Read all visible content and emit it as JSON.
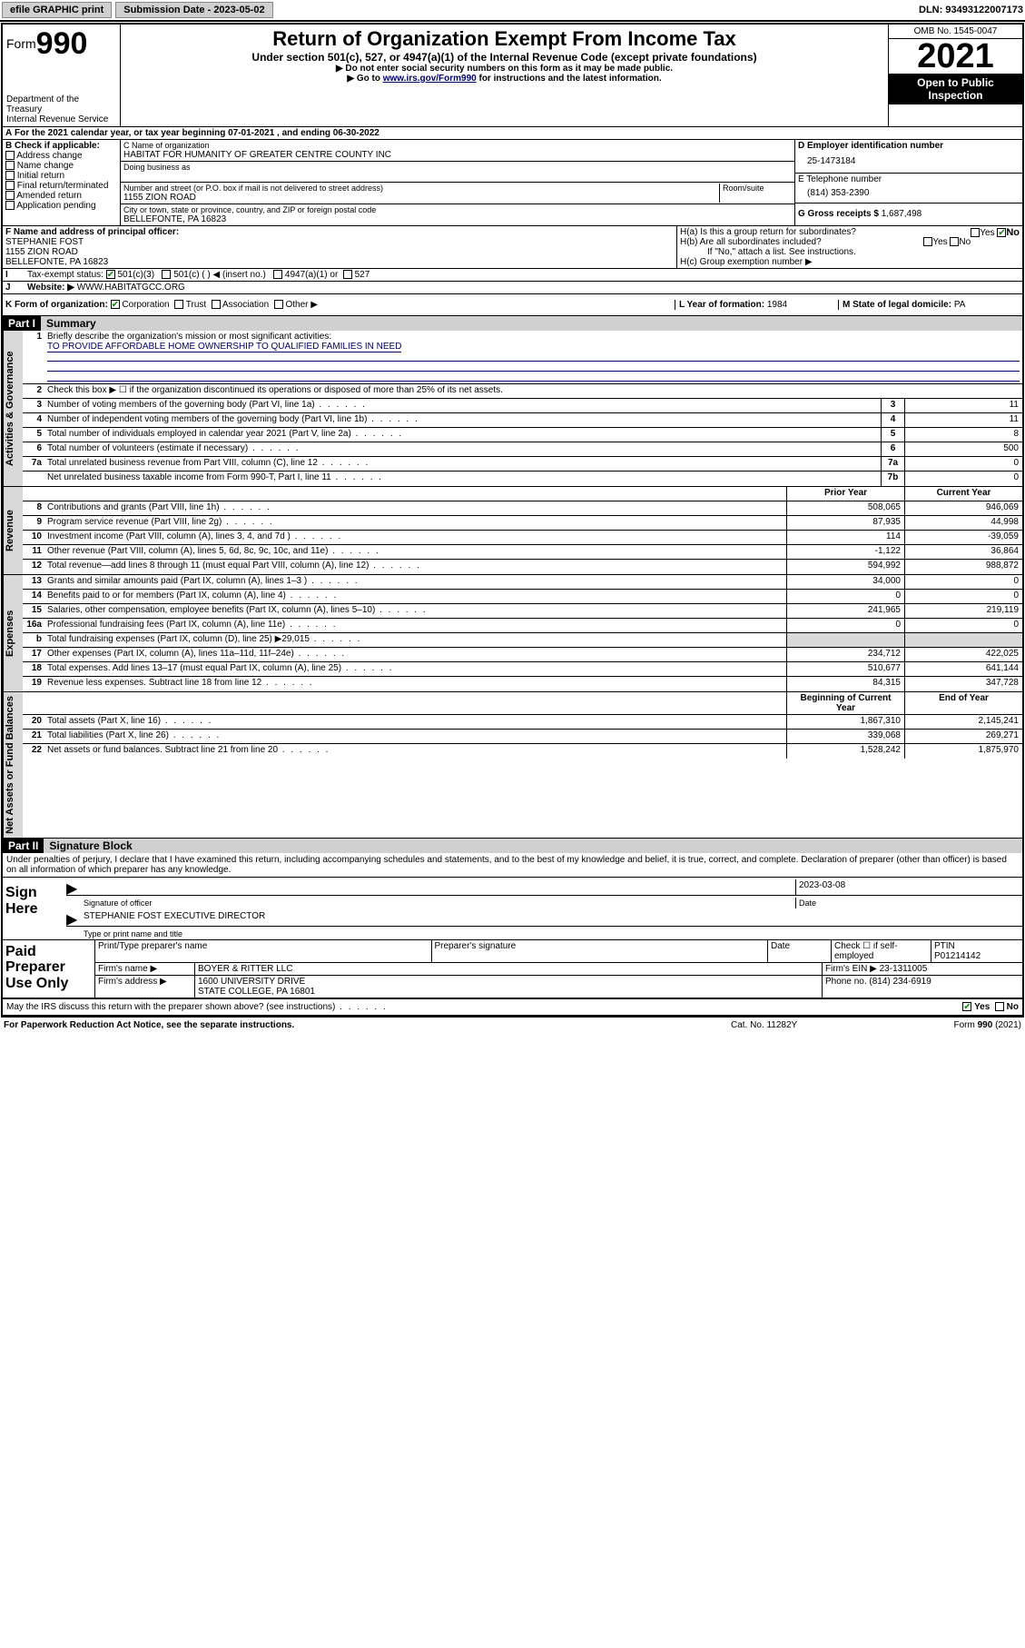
{
  "topbar": {
    "efile": "efile GRAPHIC print",
    "sub_label": "Submission Date - 2023-05-02",
    "dln_label": "DLN: 93493122007173"
  },
  "header": {
    "form_prefix": "Form",
    "form_num": "990",
    "dept": "Department of the Treasury",
    "irs": "Internal Revenue Service",
    "title": "Return of Organization Exempt From Income Tax",
    "subtitle": "Under section 501(c), 527, or 4947(a)(1) of the Internal Revenue Code (except private foundations)",
    "instr1": "▶ Do not enter social security numbers on this form as it may be made public.",
    "instr2_pre": "▶ Go to ",
    "instr2_link": "www.irs.gov/Form990",
    "instr2_post": " for instructions and the latest information.",
    "omb": "OMB No. 1545-0047",
    "year": "2021",
    "inspect": "Open to Public Inspection"
  },
  "periodA": "For the 2021 calendar year, or tax year beginning 07-01-2021  , and ending 06-30-2022",
  "boxB": {
    "label": "B Check if applicable:",
    "items": [
      "Address change",
      "Name change",
      "Initial return",
      "Final return/terminated",
      "Amended return",
      "Application pending"
    ]
  },
  "boxC": {
    "name_label": "C Name of organization",
    "name": "HABITAT FOR HUMANITY OF GREATER CENTRE COUNTY INC",
    "dba_label": "Doing business as",
    "addr_label": "Number and street (or P.O. box if mail is not delivered to street address)",
    "room_label": "Room/suite",
    "addr": "1155 ZION ROAD",
    "city_label": "City or town, state or province, country, and ZIP or foreign postal code",
    "city": "BELLEFONTE, PA  16823"
  },
  "boxD": {
    "label": "D Employer identification number",
    "val": "25-1473184"
  },
  "boxE": {
    "label": "E Telephone number",
    "val": "(814) 353-2390"
  },
  "boxG": {
    "label": "G Gross receipts $",
    "val": "1,687,498"
  },
  "boxF": {
    "label": "F  Name and address of principal officer:",
    "name": "STEPHANIE FOST",
    "addr1": "1155 ZION ROAD",
    "addr2": "BELLEFONTE, PA  16823"
  },
  "boxH": {
    "ha": "H(a)  Is this a group return for subordinates?",
    "hb": "H(b)  Are all subordinates included?",
    "hnote": "If \"No,\" attach a list. See instructions.",
    "hc": "H(c)  Group exemption number ▶",
    "yes": "Yes",
    "no": "No"
  },
  "boxI": {
    "label": "Tax-exempt status:",
    "opt1": "501(c)(3)",
    "opt2": "501(c) (  ) ◀ (insert no.)",
    "opt3": "4947(a)(1) or",
    "opt4": "527"
  },
  "boxJ": {
    "label": "Website: ▶",
    "val": "WWW.HABITATGCC.ORG"
  },
  "boxK": {
    "label": "K Form of organization:",
    "opts": [
      "Corporation",
      "Trust",
      "Association",
      "Other ▶"
    ]
  },
  "boxL": {
    "label": "L Year of formation:",
    "val": "1984"
  },
  "boxM": {
    "label": "M State of legal domicile:",
    "val": "PA"
  },
  "partI": {
    "num": "Part I",
    "title": "Summary"
  },
  "tabs": {
    "gov": "Activities & Governance",
    "rev": "Revenue",
    "exp": "Expenses",
    "net": "Net Assets or Fund Balances"
  },
  "gov": {
    "l1a": "Briefly describe the organization's mission or most significant activities:",
    "l1b": "TO PROVIDE AFFORDABLE HOME OWNERSHIP TO QUALIFIED FAMILIES IN NEED",
    "l2": "Check this box ▶ ☐  if the organization discontinued its operations or disposed of more than 25% of its net assets.",
    "rows": [
      {
        "n": "3",
        "d": "Number of voting members of the governing body (Part VI, line 1a)",
        "b": "3",
        "v": "11"
      },
      {
        "n": "4",
        "d": "Number of independent voting members of the governing body (Part VI, line 1b)",
        "b": "4",
        "v": "11"
      },
      {
        "n": "5",
        "d": "Total number of individuals employed in calendar year 2021 (Part V, line 2a)",
        "b": "5",
        "v": "8"
      },
      {
        "n": "6",
        "d": "Total number of volunteers (estimate if necessary)",
        "b": "6",
        "v": "500"
      },
      {
        "n": "7a",
        "d": "Total unrelated business revenue from Part VIII, column (C), line 12",
        "b": "7a",
        "v": "0"
      },
      {
        "n": "",
        "d": "Net unrelated business taxable income from Form 990-T, Part I, line 11",
        "b": "7b",
        "v": "0"
      }
    ]
  },
  "twoCol": {
    "prior": "Prior Year",
    "curr": "Current Year",
    "boy": "Beginning of Current Year",
    "eoy": "End of Year"
  },
  "rev": [
    {
      "n": "8",
      "d": "Contributions and grants (Part VIII, line 1h)",
      "p": "508,065",
      "c": "946,069"
    },
    {
      "n": "9",
      "d": "Program service revenue (Part VIII, line 2g)",
      "p": "87,935",
      "c": "44,998"
    },
    {
      "n": "10",
      "d": "Investment income (Part VIII, column (A), lines 3, 4, and 7d )",
      "p": "114",
      "c": "-39,059"
    },
    {
      "n": "11",
      "d": "Other revenue (Part VIII, column (A), lines 5, 6d, 8c, 9c, 10c, and 11e)",
      "p": "-1,122",
      "c": "36,864"
    },
    {
      "n": "12",
      "d": "Total revenue—add lines 8 through 11 (must equal Part VIII, column (A), line 12)",
      "p": "594,992",
      "c": "988,872"
    }
  ],
  "exp": [
    {
      "n": "13",
      "d": "Grants and similar amounts paid (Part IX, column (A), lines 1–3 )",
      "p": "34,000",
      "c": "0"
    },
    {
      "n": "14",
      "d": "Benefits paid to or for members (Part IX, column (A), line 4)",
      "p": "0",
      "c": "0"
    },
    {
      "n": "15",
      "d": "Salaries, other compensation, employee benefits (Part IX, column (A), lines 5–10)",
      "p": "241,965",
      "c": "219,119"
    },
    {
      "n": "16a",
      "d": "Professional fundraising fees (Part IX, column (A), line 11e)",
      "p": "0",
      "c": "0"
    },
    {
      "n": "b",
      "d": "Total fundraising expenses (Part IX, column (D), line 25) ▶29,015",
      "p": "",
      "c": "",
      "shade": true
    },
    {
      "n": "17",
      "d": "Other expenses (Part IX, column (A), lines 11a–11d, 11f–24e)",
      "p": "234,712",
      "c": "422,025"
    },
    {
      "n": "18",
      "d": "Total expenses. Add lines 13–17 (must equal Part IX, column (A), line 25)",
      "p": "510,677",
      "c": "641,144"
    },
    {
      "n": "19",
      "d": "Revenue less expenses. Subtract line 18 from line 12",
      "p": "84,315",
      "c": "347,728"
    }
  ],
  "net": [
    {
      "n": "20",
      "d": "Total assets (Part X, line 16)",
      "p": "1,867,310",
      "c": "2,145,241"
    },
    {
      "n": "21",
      "d": "Total liabilities (Part X, line 26)",
      "p": "339,068",
      "c": "269,271"
    },
    {
      "n": "22",
      "d": "Net assets or fund balances. Subtract line 21 from line 20",
      "p": "1,528,242",
      "c": "1,875,970"
    }
  ],
  "partII": {
    "num": "Part II",
    "title": "Signature Block"
  },
  "sig": {
    "decl": "Under penalties of perjury, I declare that I have examined this return, including accompanying schedules and statements, and to the best of my knowledge and belief, it is true, correct, and complete. Declaration of preparer (other than officer) is based on all information of which preparer has any knowledge.",
    "here": "Sign Here",
    "sig_of": "Signature of officer",
    "date_l": "Date",
    "date_v": "2023-03-08",
    "name": "STEPHANIE FOST  EXECUTIVE DIRECTOR",
    "name_l": "Type or print name and title"
  },
  "prep": {
    "label": "Paid Preparer Use Only",
    "h_name": "Print/Type preparer's name",
    "h_sig": "Preparer's signature",
    "h_date": "Date",
    "h_check": "Check ☐ if self-employed",
    "h_ptin": "PTIN",
    "ptin": "P01214142",
    "firm_l": "Firm's name  ▶",
    "firm": "BOYER & RITTER LLC",
    "ein_l": "Firm's EIN ▶",
    "ein": "23-1311005",
    "addr_l": "Firm's address ▶",
    "addr1": "1600 UNIVERSITY DRIVE",
    "addr2": "STATE COLLEGE, PA  16801",
    "phone_l": "Phone no.",
    "phone": "(814) 234-6919"
  },
  "discuss": {
    "q": "May the IRS discuss this return with the preparer shown above? (see instructions)",
    "yes": "Yes",
    "no": "No"
  },
  "footer": {
    "pra": "For Paperwork Reduction Act Notice, see the separate instructions.",
    "cat": "Cat. No. 11282Y",
    "form": "Form 990 (2021)"
  }
}
